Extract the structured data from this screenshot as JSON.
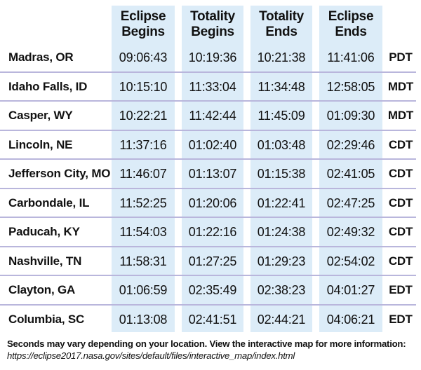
{
  "table": {
    "headers": [
      {
        "line1": "Eclipse",
        "line2": "Begins"
      },
      {
        "line1": "Totality",
        "line2": "Begins"
      },
      {
        "line1": "Totality",
        "line2": "Ends"
      },
      {
        "line1": "Eclipse",
        "line2": "Ends"
      }
    ],
    "rows": [
      {
        "city": "Madras, OR",
        "eclipse_begins": "09:06:43",
        "totality_begins": "10:19:36",
        "totality_ends": "10:21:38",
        "eclipse_ends": "11:41:06",
        "timezone": "PDT"
      },
      {
        "city": "Idaho Falls, ID",
        "eclipse_begins": "10:15:10",
        "totality_begins": "11:33:04",
        "totality_ends": "11:34:48",
        "eclipse_ends": "12:58:05",
        "timezone": "MDT"
      },
      {
        "city": "Casper, WY",
        "eclipse_begins": "10:22:21",
        "totality_begins": "11:42:44",
        "totality_ends": "11:45:09",
        "eclipse_ends": "01:09:30",
        "timezone": "MDT"
      },
      {
        "city": "Lincoln, NE",
        "eclipse_begins": "11:37:16",
        "totality_begins": "01:02:40",
        "totality_ends": "01:03:48",
        "eclipse_ends": "02:29:46",
        "timezone": "CDT"
      },
      {
        "city": "Jefferson City, MO",
        "eclipse_begins": "11:46:07",
        "totality_begins": "01:13:07",
        "totality_ends": "01:15:38",
        "eclipse_ends": "02:41:05",
        "timezone": "CDT"
      },
      {
        "city": "Carbondale, IL",
        "eclipse_begins": "11:52:25",
        "totality_begins": "01:20:06",
        "totality_ends": "01:22:41",
        "eclipse_ends": "02:47:25",
        "timezone": "CDT"
      },
      {
        "city": "Paducah, KY",
        "eclipse_begins": "11:54:03",
        "totality_begins": "01:22:16",
        "totality_ends": "01:24:38",
        "eclipse_ends": "02:49:32",
        "timezone": "CDT"
      },
      {
        "city": "Nashville, TN",
        "eclipse_begins": "11:58:31",
        "totality_begins": "01:27:25",
        "totality_ends": "01:29:23",
        "eclipse_ends": "02:54:02",
        "timezone": "CDT"
      },
      {
        "city": "Clayton, GA",
        "eclipse_begins": "01:06:59",
        "totality_begins": "02:35:49",
        "totality_ends": "02:38:23",
        "eclipse_ends": "04:01:27",
        "timezone": "EDT"
      },
      {
        "city": "Columbia, SC",
        "eclipse_begins": "01:13:08",
        "totality_begins": "02:41:51",
        "totality_ends": "02:44:21",
        "eclipse_ends": "04:06:21",
        "timezone": "EDT"
      }
    ]
  },
  "footnote": {
    "text": "Seconds may vary depending on your location. View the interactive map for more information:",
    "url": "https://eclipse2017.nasa.gov/sites/default/files/interactive_map/index.html"
  },
  "colors": {
    "column_highlight": "#dcecf8",
    "row_divider": "#b9b6dc",
    "text": "#111111"
  }
}
